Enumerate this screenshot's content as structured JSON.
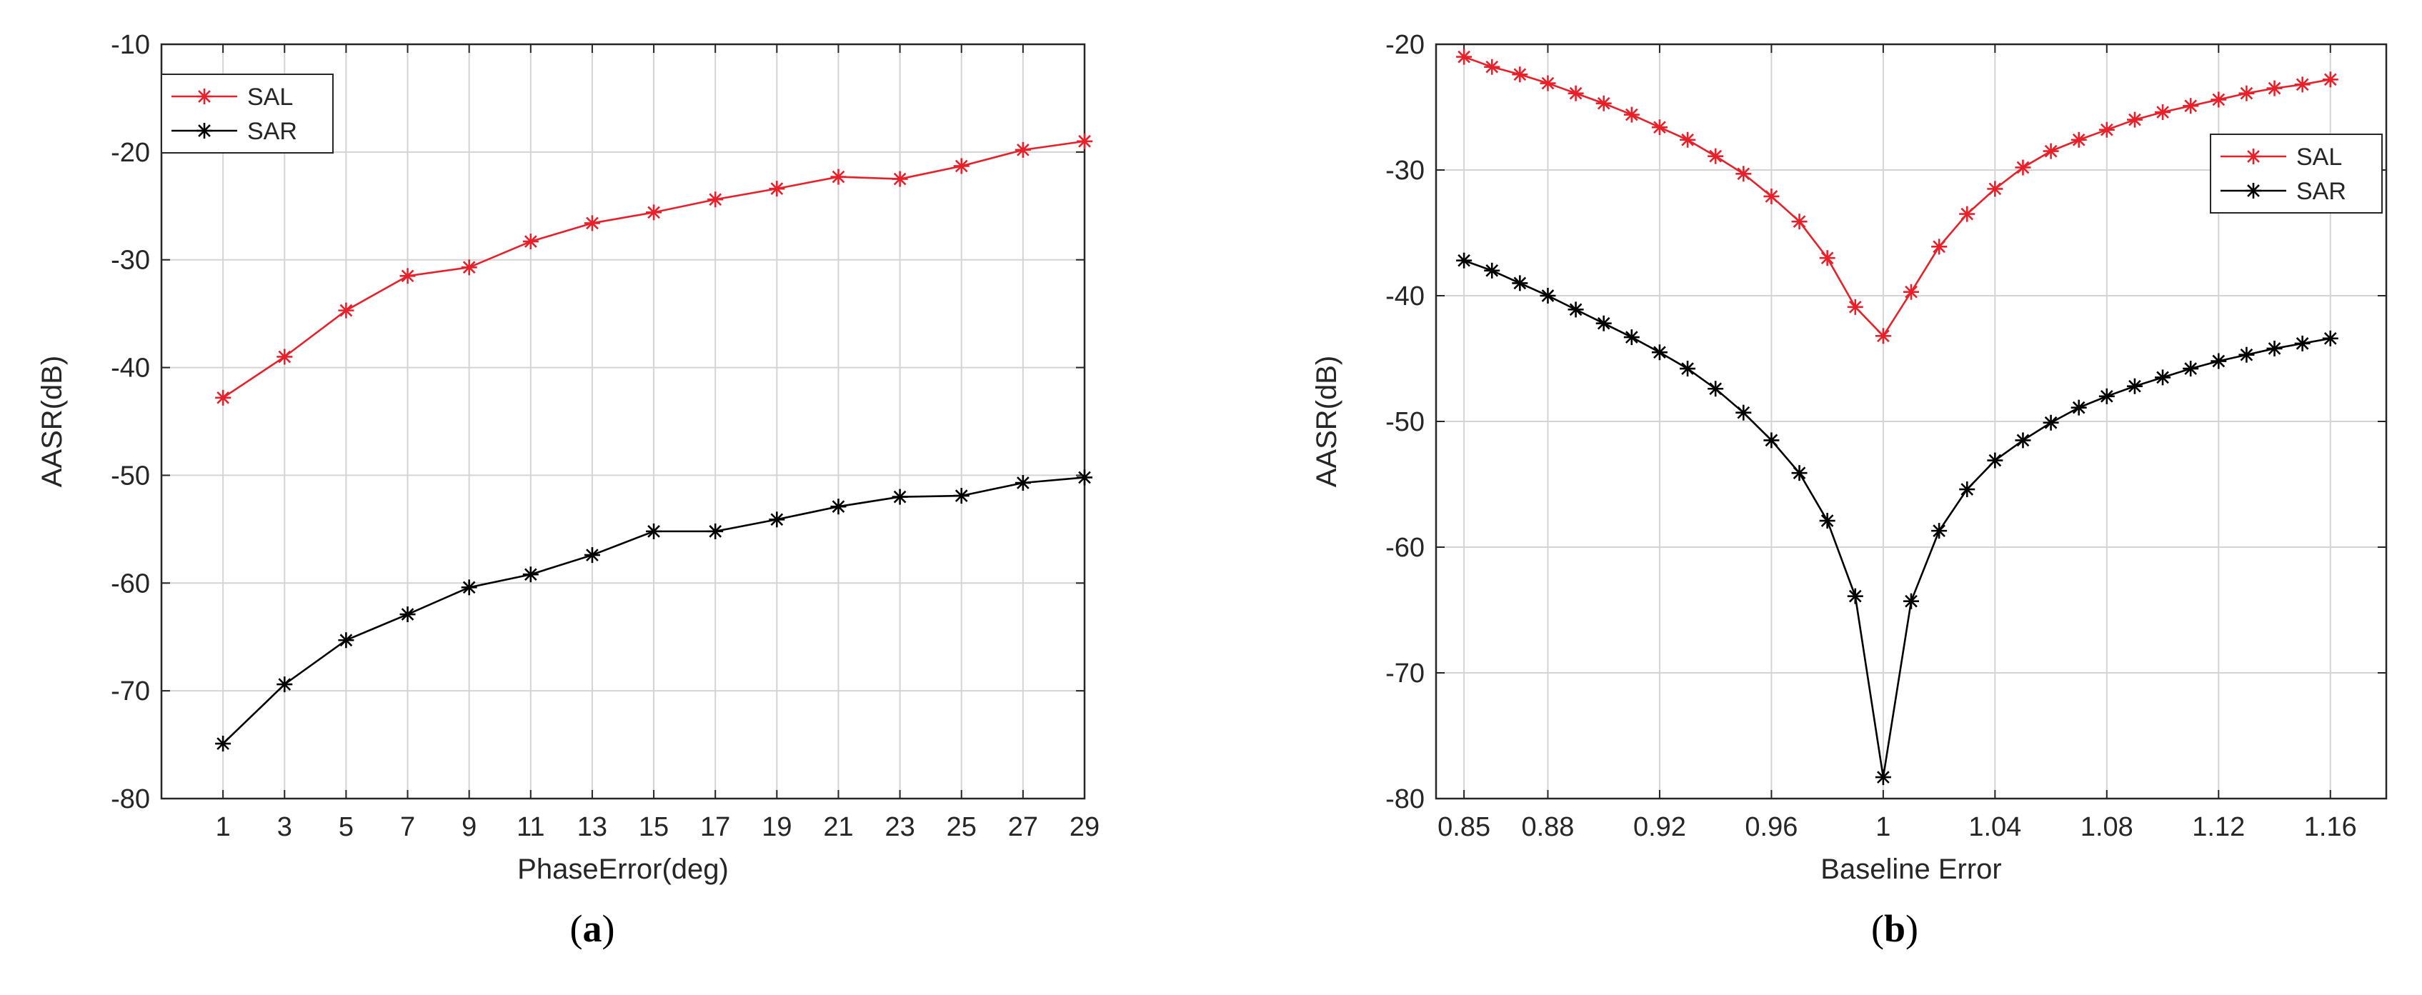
{
  "panels": [
    {
      "caption_letter": "a",
      "chart_data": {
        "type": "line",
        "x": [
          1,
          3,
          5,
          7,
          9,
          11,
          13,
          15,
          17,
          19,
          21,
          23,
          25,
          27,
          29
        ],
        "series": [
          {
            "name": "SAL",
            "color": "#e8202a",
            "marker": "asterisk",
            "values": [
              -42.8,
              -39.0,
              -34.7,
              -31.5,
              -30.7,
              -28.3,
              -26.6,
              -25.6,
              -24.4,
              -23.4,
              -22.3,
              -22.5,
              -21.3,
              -19.8,
              -19.0
            ]
          },
          {
            "name": "SAR",
            "color": "#000000",
            "marker": "asterisk",
            "values": [
              -74.9,
              -69.4,
              -65.3,
              -62.9,
              -60.4,
              -59.2,
              -57.4,
              -55.2,
              -55.2,
              -54.1,
              -52.9,
              -52.0,
              -51.9,
              -50.7,
              -50.2
            ]
          }
        ],
        "title": "",
        "xlabel": "PhaseError(deg)",
        "ylabel": "AASR(dB)",
        "xlim": [
          -1,
          29
        ],
        "ylim": [
          -80,
          -10
        ],
        "xticks": [
          1,
          3,
          5,
          7,
          9,
          11,
          13,
          15,
          17,
          19,
          21,
          23,
          25,
          27,
          29
        ],
        "xtick_labels": [
          "1",
          "3",
          "5",
          "7",
          "9",
          "11",
          "13",
          "15",
          "17",
          "19",
          "21",
          "23",
          "25",
          "27",
          "29"
        ],
        "yticks": [
          -80,
          -70,
          -60,
          -50,
          -40,
          -30,
          -20,
          -10
        ],
        "ytick_labels": [
          "-80",
          "-70",
          "-60",
          "-50",
          "-40",
          "-30",
          "-20",
          "-10"
        ],
        "grid": true,
        "legend_position": "top-left"
      }
    },
    {
      "caption_letter": "b",
      "chart_data": {
        "type": "line",
        "x": [
          0.85,
          0.86,
          0.87,
          0.88,
          0.89,
          0.9,
          0.91,
          0.92,
          0.93,
          0.94,
          0.95,
          0.96,
          0.97,
          0.98,
          0.99,
          1.0,
          1.01,
          1.02,
          1.03,
          1.04,
          1.05,
          1.06,
          1.07,
          1.08,
          1.09,
          1.1,
          1.11,
          1.12,
          1.13,
          1.14,
          1.15,
          1.16
        ],
        "series": [
          {
            "name": "SAL",
            "color": "#e8202a",
            "marker": "asterisk",
            "values": [
              -21.0,
              -21.8,
              -22.4,
              -23.1,
              -23.9,
              -24.7,
              -25.6,
              -26.6,
              -27.6,
              -28.9,
              -30.3,
              -32.1,
              -34.1,
              -37.0,
              -40.9,
              -43.2,
              -39.7,
              -36.1,
              -33.5,
              -31.5,
              -29.8,
              -28.5,
              -27.6,
              -26.8,
              -26.0,
              -25.4,
              -24.9,
              -24.4,
              -23.9,
              -23.5,
              -23.2,
              -22.8
            ]
          },
          {
            "name": "SAR",
            "color": "#000000",
            "marker": "asterisk",
            "values": [
              -37.2,
              -38.0,
              -39.0,
              -40.0,
              -41.1,
              -42.2,
              -43.3,
              -44.5,
              -45.8,
              -47.4,
              -49.3,
              -51.5,
              -54.1,
              -57.9,
              -63.9,
              -78.3,
              -64.3,
              -58.7,
              -55.4,
              -53.1,
              -51.5,
              -50.1,
              -48.9,
              -48.0,
              -47.2,
              -46.5,
              -45.8,
              -45.2,
              -44.7,
              -44.2,
              -43.8,
              -43.4
            ]
          }
        ],
        "title": "",
        "xlabel": "Baseline Error",
        "ylabel": "AASR(dB)",
        "xlim": [
          0.84,
          1.18
        ],
        "ylim": [
          -80,
          -20
        ],
        "xticks": [
          0.85,
          0.88,
          0.92,
          0.96,
          1.0,
          1.04,
          1.08,
          1.12,
          1.16
        ],
        "xtick_labels": [
          "0.85",
          "0.88",
          "0.92",
          "0.96",
          "1",
          "1.04",
          "1.08",
          "1.12",
          "1.16"
        ],
        "yticks": [
          -80,
          -70,
          -60,
          -50,
          -40,
          -30,
          -20
        ],
        "ytick_labels": [
          "-80",
          "-70",
          "-60",
          "-50",
          "-40",
          "-30",
          "-20"
        ],
        "grid": true,
        "legend_position": "top-right"
      }
    }
  ]
}
